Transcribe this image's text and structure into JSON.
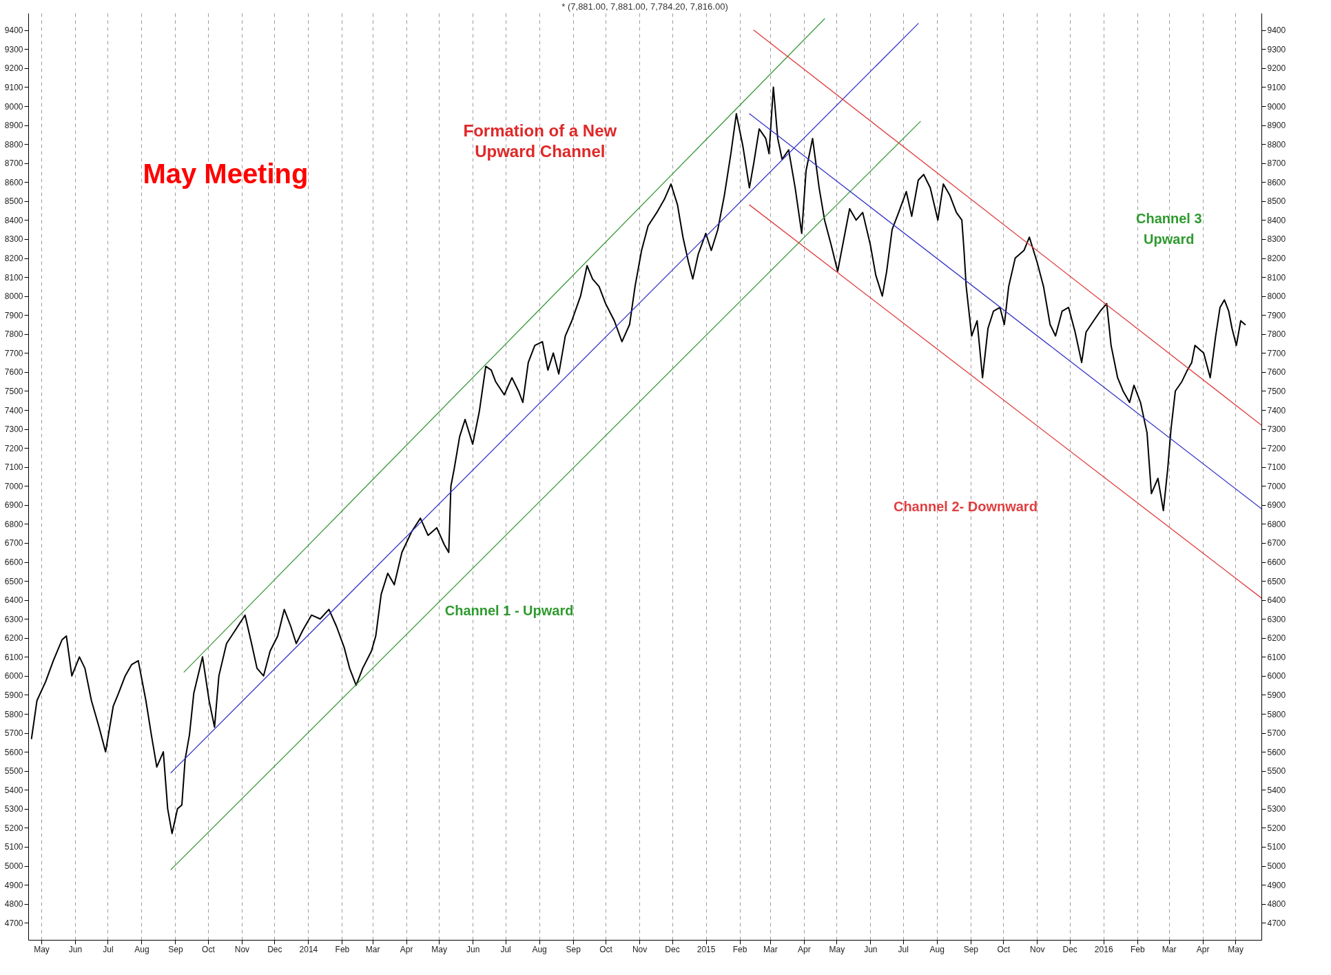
{
  "chart_data": {
    "type": "line",
    "title": "* (7,881.00, 7,881.00, 7,784.20, 7,816.00)",
    "xlim": [
      "2013-04-19",
      "2016-05-25"
    ],
    "xticks": [
      {
        "value": "2013-05-01",
        "label": "May"
      },
      {
        "value": "2013-06-01",
        "label": "Jun"
      },
      {
        "value": "2013-07-01",
        "label": "Jul"
      },
      {
        "value": "2013-08-01",
        "label": "Aug"
      },
      {
        "value": "2013-09-01",
        "label": "Sep"
      },
      {
        "value": "2013-10-01",
        "label": "Oct"
      },
      {
        "value": "2013-11-01",
        "label": "Nov"
      },
      {
        "value": "2013-12-01",
        "label": "Dec"
      },
      {
        "value": "2014-01-01",
        "label": "2014"
      },
      {
        "value": "2014-02-01",
        "label": "Feb"
      },
      {
        "value": "2014-03-01",
        "label": "Mar"
      },
      {
        "value": "2014-04-01",
        "label": "Apr"
      },
      {
        "value": "2014-05-01",
        "label": "May"
      },
      {
        "value": "2014-06-01",
        "label": "Jun"
      },
      {
        "value": "2014-07-01",
        "label": "Jul"
      },
      {
        "value": "2014-08-01",
        "label": "Aug"
      },
      {
        "value": "2014-09-01",
        "label": "Sep"
      },
      {
        "value": "2014-10-01",
        "label": "Oct"
      },
      {
        "value": "2014-11-01",
        "label": "Nov"
      },
      {
        "value": "2014-12-01",
        "label": "Dec"
      },
      {
        "value": "2015-01-01",
        "label": "2015"
      },
      {
        "value": "2015-02-01",
        "label": "Feb"
      },
      {
        "value": "2015-03-01",
        "label": "Mar"
      },
      {
        "value": "2015-04-01",
        "label": "Apr"
      },
      {
        "value": "2015-05-01",
        "label": "May"
      },
      {
        "value": "2015-06-01",
        "label": "Jun"
      },
      {
        "value": "2015-07-01",
        "label": "Jul"
      },
      {
        "value": "2015-08-01",
        "label": "Aug"
      },
      {
        "value": "2015-09-01",
        "label": "Sep"
      },
      {
        "value": "2015-10-01",
        "label": "Oct"
      },
      {
        "value": "2015-11-01",
        "label": "Nov"
      },
      {
        "value": "2015-12-01",
        "label": "Dec"
      },
      {
        "value": "2016-01-01",
        "label": "2016"
      },
      {
        "value": "2016-02-01",
        "label": "Feb"
      },
      {
        "value": "2016-03-01",
        "label": "Mar"
      },
      {
        "value": "2016-04-01",
        "label": "Apr"
      },
      {
        "value": "2016-05-01",
        "label": "May"
      }
    ],
    "ylim": [
      4610,
      9490
    ],
    "yticks": [
      4700,
      4800,
      4900,
      5000,
      5100,
      5200,
      5300,
      5400,
      5500,
      5600,
      5700,
      5800,
      5900,
      6000,
      6100,
      6200,
      6300,
      6400,
      6500,
      6600,
      6700,
      6800,
      6900,
      7000,
      7100,
      7200,
      7300,
      7400,
      7500,
      7600,
      7700,
      7800,
      7900,
      8000,
      8100,
      8200,
      8300,
      8400,
      8500,
      8600,
      8700,
      8800,
      8900,
      9000,
      9100,
      9200,
      9300,
      9400
    ],
    "y2lim": [
      4610,
      9490
    ],
    "y2ticks": [
      4700,
      4800,
      4900,
      5000,
      5100,
      5200,
      5300,
      5400,
      5500,
      5600,
      5700,
      5800,
      5900,
      6000,
      6100,
      6200,
      6300,
      6400,
      6500,
      6600,
      6700,
      6800,
      6900,
      7000,
      7100,
      7200,
      7300,
      7400,
      7500,
      7600,
      7700,
      7800,
      7900,
      8000,
      8100,
      8200,
      8300,
      8400,
      8500,
      8600,
      8700,
      8800,
      8900,
      9000,
      9100,
      9200,
      9300,
      9400
    ],
    "grid": "x",
    "annotations": [
      "May Meeting",
      "Formation of a New\nUpward Channel",
      "Channel 1 - Upward",
      "Channel 2- Downward",
      "Channel 3\nUpward"
    ],
    "series": [
      {
        "color": "#000000",
        "x": [
          "2013-04-22",
          "2013-04-27",
          "2013-05-05",
          "2013-05-12",
          "2013-05-20",
          "2013-05-24",
          "2013-05-29",
          "2013-06-05",
          "2013-06-10",
          "2013-06-16",
          "2013-06-23",
          "2013-06-29",
          "2013-07-06",
          "2013-07-11",
          "2013-07-17",
          "2013-07-23",
          "2013-07-29",
          "2013-08-05",
          "2013-08-10",
          "2013-08-15",
          "2013-08-21",
          "2013-08-25",
          "2013-08-29",
          "2013-09-03",
          "2013-09-07",
          "2013-09-10",
          "2013-09-14",
          "2013-09-18",
          "2013-09-26",
          "2013-10-02",
          "2013-10-07",
          "2013-10-11",
          "2013-10-18",
          "2013-10-26",
          "2013-11-04",
          "2013-11-10",
          "2013-11-15",
          "2013-11-21",
          "2013-11-27",
          "2013-12-04",
          "2013-12-10",
          "2013-12-16",
          "2013-12-21",
          "2013-12-27",
          "2014-01-04",
          "2014-01-12",
          "2014-01-20",
          "2014-01-27",
          "2014-02-03",
          "2014-02-08",
          "2014-02-14",
          "2014-02-20",
          "2014-02-28",
          "2014-03-04",
          "2014-03-09",
          "2014-03-15",
          "2014-03-21",
          "2014-03-28",
          "2014-04-06",
          "2014-04-14",
          "2014-04-21",
          "2014-04-29",
          "2014-05-06",
          "2014-05-10",
          "2014-05-12",
          "2014-05-15",
          "2014-05-20",
          "2014-05-25",
          "2014-06-01",
          "2014-06-07",
          "2014-06-13",
          "2014-06-18",
          "2014-06-22",
          "2014-06-30",
          "2014-07-07",
          "2014-07-13",
          "2014-07-17",
          "2014-07-22",
          "2014-07-28",
          "2014-08-04",
          "2014-08-09",
          "2014-08-14",
          "2014-08-19",
          "2014-08-25",
          "2014-08-31",
          "2014-09-08",
          "2014-09-14",
          "2014-09-19",
          "2014-09-25",
          "2014-10-01",
          "2014-10-09",
          "2014-10-16",
          "2014-10-23",
          "2014-10-28",
          "2014-11-03",
          "2014-11-09",
          "2014-11-17",
          "2014-11-24",
          "2014-11-30",
          "2014-12-06",
          "2014-12-11",
          "2014-12-16",
          "2014-12-20",
          "2014-12-25",
          "2015-01-01",
          "2015-01-06",
          "2015-01-12",
          "2015-01-18",
          "2015-01-24",
          "2015-01-29",
          "2015-02-04",
          "2015-02-10",
          "2015-02-14",
          "2015-02-19",
          "2015-02-25",
          "2015-02-28",
          "2015-03-04",
          "2015-03-08",
          "2015-03-12",
          "2015-03-18",
          "2015-03-24",
          "2015-03-30",
          "2015-04-03",
          "2015-04-09",
          "2015-04-15",
          "2015-04-20",
          "2015-04-26",
          "2015-05-02",
          "2015-05-08",
          "2015-05-13",
          "2015-05-19",
          "2015-05-25",
          "2015-06-01",
          "2015-06-06",
          "2015-06-12",
          "2015-06-16",
          "2015-06-21",
          "2015-06-27",
          "2015-07-04",
          "2015-07-09",
          "2015-07-15",
          "2015-07-20",
          "2015-07-26",
          "2015-08-02",
          "2015-08-07",
          "2015-08-13",
          "2015-08-19",
          "2015-08-24",
          "2015-08-26",
          "2015-08-28",
          "2015-09-02",
          "2015-09-07",
          "2015-09-12",
          "2015-09-17",
          "2015-09-22",
          "2015-09-28",
          "2015-10-02",
          "2015-10-06",
          "2015-10-12",
          "2015-10-20",
          "2015-10-25",
          "2015-11-01",
          "2015-11-07",
          "2015-11-13",
          "2015-11-18",
          "2015-11-24",
          "2015-11-30",
          "2015-12-06",
          "2015-12-12",
          "2015-12-16",
          "2015-12-23",
          "2015-12-29",
          "2016-01-04",
          "2016-01-08",
          "2016-01-14",
          "2016-01-19",
          "2016-01-25",
          "2016-01-29",
          "2016-02-04",
          "2016-02-10",
          "2016-02-14",
          "2016-02-20",
          "2016-02-25",
          "2016-02-29",
          "2016-03-03",
          "2016-03-07",
          "2016-03-13",
          "2016-03-18",
          "2016-03-22",
          "2016-03-25",
          "2016-04-02",
          "2016-04-08",
          "2016-04-13",
          "2016-04-17",
          "2016-04-21",
          "2016-04-25",
          "2016-04-28",
          "2016-05-02",
          "2016-05-06",
          "2016-05-10"
        ],
        "values": [
          5670,
          5870,
          5970,
          6080,
          6190,
          6210,
          6000,
          6100,
          6040,
          5870,
          5730,
          5600,
          5840,
          5910,
          6000,
          6060,
          6080,
          5870,
          5690,
          5520,
          5600,
          5300,
          5170,
          5300,
          5320,
          5560,
          5690,
          5910,
          6100,
          5870,
          5730,
          6000,
          6170,
          6240,
          6320,
          6170,
          6040,
          6000,
          6130,
          6210,
          6350,
          6260,
          6170,
          6240,
          6320,
          6300,
          6350,
          6260,
          6150,
          6040,
          5950,
          6040,
          6130,
          6210,
          6430,
          6540,
          6480,
          6650,
          6760,
          6830,
          6740,
          6780,
          6690,
          6650,
          7000,
          7090,
          7260,
          7350,
          7220,
          7390,
          7630,
          7610,
          7550,
          7480,
          7570,
          7500,
          7440,
          7650,
          7740,
          7760,
          7610,
          7700,
          7590,
          7790,
          7870,
          8000,
          8160,
          8090,
          8050,
          7960,
          7870,
          7760,
          7850,
          8050,
          8240,
          8370,
          8440,
          8510,
          8590,
          8480,
          8310,
          8180,
          8090,
          8220,
          8330,
          8240,
          8350,
          8530,
          8750,
          8960,
          8790,
          8570,
          8700,
          8880,
          8830,
          8750,
          9100,
          8830,
          8720,
          8770,
          8570,
          8330,
          8660,
          8830,
          8570,
          8400,
          8270,
          8130,
          8310,
          8460,
          8400,
          8440,
          8270,
          8110,
          8000,
          8130,
          8350,
          8440,
          8550,
          8420,
          8610,
          8640,
          8570,
          8400,
          8590,
          8530,
          8440,
          8400,
          8240,
          8050,
          7790,
          7870,
          7570,
          7830,
          7920,
          7940,
          7850,
          8050,
          8200,
          8240,
          8310,
          8180,
          8050,
          7850,
          7790,
          7920,
          7940,
          7810,
          7650,
          7810,
          7870,
          7920,
          7960,
          7740,
          7570,
          7500,
          7440,
          7530,
          7440,
          7280,
          6960,
          7040,
          6870,
          7090,
          7300,
          7500,
          7550,
          7610,
          7650,
          7740,
          7700,
          7570,
          7790,
          7940,
          7980,
          7920,
          7830,
          7740,
          7870,
          7850
        ]
      },
      {
        "type": "line",
        "color": "#3c9a3c",
        "x": [
          "2013-09-09",
          "2015-04-20"
        ],
        "values": [
          6020,
          9460
        ]
      },
      {
        "type": "line",
        "color": "#3434c8",
        "x": [
          "2013-08-28",
          "2015-07-15"
        ],
        "values": [
          5490,
          9435
        ]
      },
      {
        "type": "line",
        "color": "#3c9a3c",
        "x": [
          "2013-08-28",
          "2015-07-17"
        ],
        "values": [
          4980,
          8920
        ]
      },
      {
        "type": "line",
        "color": "#e03a3a",
        "x": [
          "2015-02-14",
          "2016-05-25"
        ],
        "values": [
          9400,
          7320
        ]
      },
      {
        "type": "line",
        "color": "#3434c8",
        "x": [
          "2015-02-10",
          "2016-05-25"
        ],
        "values": [
          8960,
          6880
        ]
      },
      {
        "type": "line",
        "color": "#e03a3a",
        "x": [
          "2015-02-10",
          "2016-05-25"
        ],
        "values": [
          8480,
          6410
        ]
      }
    ]
  }
}
